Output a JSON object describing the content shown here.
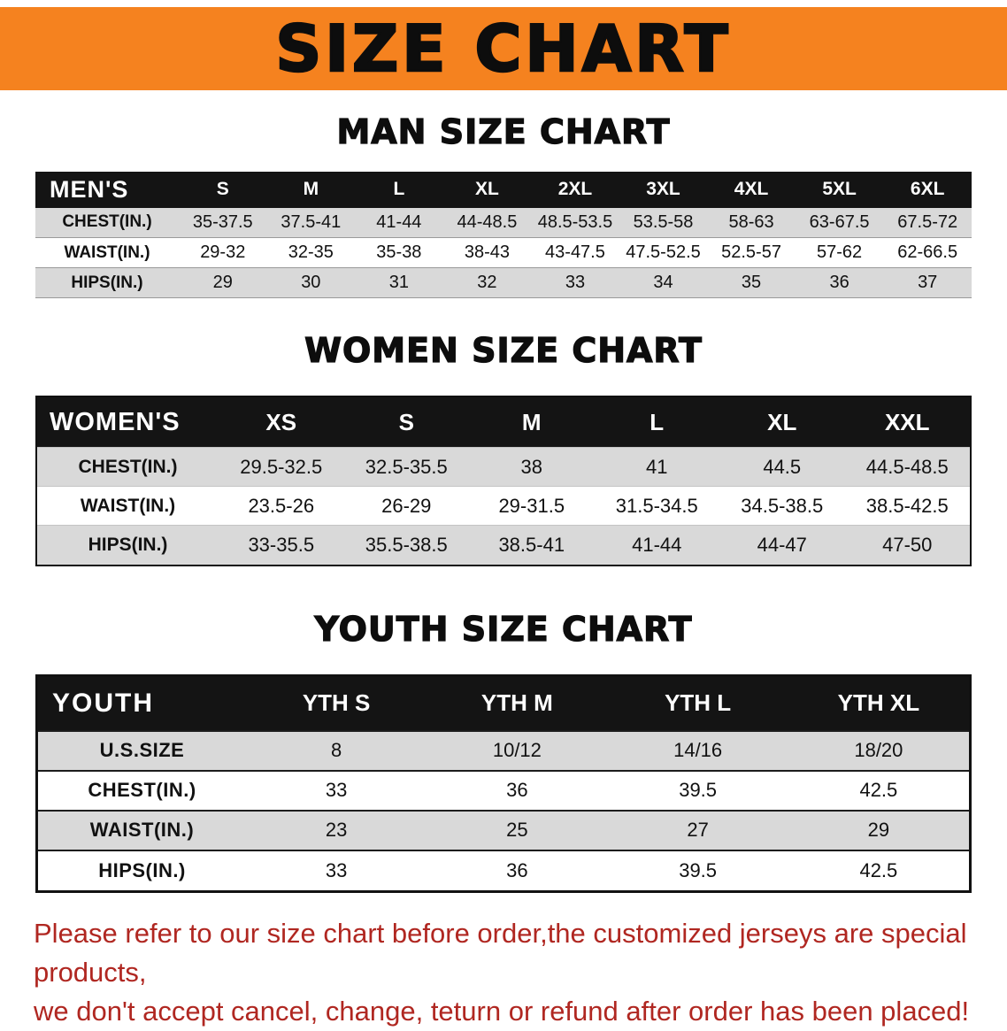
{
  "colors": {
    "banner-bg": "#f5821f",
    "header-bg": "#141414",
    "stripe": "#d9d9d9",
    "disclaimer-red": "#b02721"
  },
  "banner": {
    "title": "SIZE CHART"
  },
  "sections": [
    {
      "heading": "MAN SIZE CHART",
      "table": {
        "name": "mens",
        "label": "MEN'S",
        "columns": [
          "S",
          "M",
          "L",
          "XL",
          "2XL",
          "3XL",
          "4XL",
          "5XL",
          "6XL"
        ],
        "rows": [
          {
            "label": "CHEST(IN.)",
            "values": [
              "35-37.5",
              "37.5-41",
              "41-44",
              "44-48.5",
              "48.5-53.5",
              "53.5-58",
              "58-63",
              "63-67.5",
              "67.5-72"
            ]
          },
          {
            "label": "WAIST(IN.)",
            "values": [
              "29-32",
              "32-35",
              "35-38",
              "38-43",
              "43-47.5",
              "47.5-52.5",
              "52.5-57",
              "57-62",
              "62-66.5"
            ]
          },
          {
            "label": "HIPS(IN.)",
            "values": [
              "29",
              "30",
              "31",
              "32",
              "33",
              "34",
              "35",
              "36",
              "37"
            ]
          }
        ]
      }
    },
    {
      "heading": "WOMEN SIZE CHART",
      "table": {
        "name": "womens",
        "label": "WOMEN'S",
        "columns": [
          "XS",
          "S",
          "M",
          "L",
          "XL",
          "XXL"
        ],
        "rows": [
          {
            "label": "CHEST(IN.)",
            "values": [
              "29.5-32.5",
              "32.5-35.5",
              "38",
              "41",
              "44.5",
              "44.5-48.5"
            ]
          },
          {
            "label": "WAIST(IN.)",
            "values": [
              "23.5-26",
              "26-29",
              "29-31.5",
              "31.5-34.5",
              "34.5-38.5",
              "38.5-42.5"
            ]
          },
          {
            "label": "HIPS(IN.)",
            "values": [
              "33-35.5",
              "35.5-38.5",
              "38.5-41",
              "41-44",
              "44-47",
              "47-50"
            ]
          }
        ]
      }
    },
    {
      "heading": "YOUTH SIZE CHART",
      "table": {
        "name": "youth",
        "label": "YOUTH",
        "columns": [
          "YTH S",
          "YTH M",
          "YTH L",
          "YTH XL"
        ],
        "rows": [
          {
            "label": "U.S.SIZE",
            "values": [
              "8",
              "10/12",
              "14/16",
              "18/20"
            ]
          },
          {
            "label": "CHEST(IN.)",
            "values": [
              "33",
              "36",
              "39.5",
              "42.5"
            ]
          },
          {
            "label": "WAIST(IN.)",
            "values": [
              "23",
              "25",
              "27",
              "29"
            ]
          },
          {
            "label": "HIPS(IN.)",
            "values": [
              "33",
              "36",
              "39.5",
              "42.5"
            ]
          }
        ]
      }
    }
  ],
  "disclaimer": {
    "lines": [
      "Please refer to our size chart before order,the customized jerseys are special products,",
      "we don't accept cancel, change, teturn or refund after order has been placed!"
    ]
  }
}
